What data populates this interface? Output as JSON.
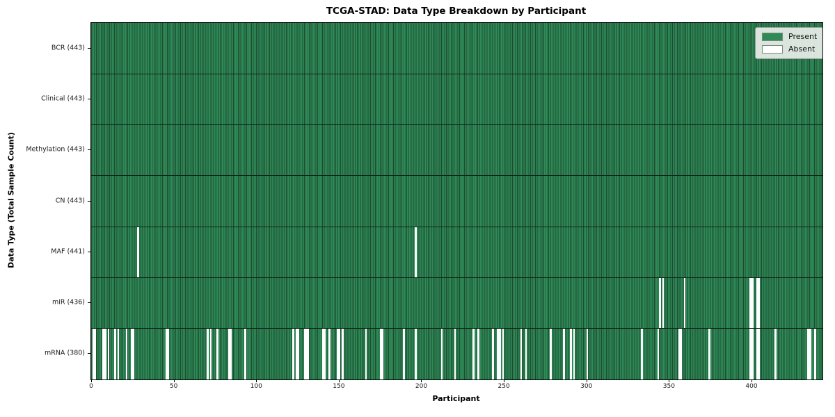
{
  "chart_data": {
    "type": "heatmap",
    "title": "TCGA-STAD: Data Type Breakdown by Participant",
    "xlabel": "Participant",
    "ylabel": "Data Type (Total Sample Count)",
    "n_participants": 443,
    "x_ticks": [
      0,
      50,
      100,
      150,
      200,
      250,
      300,
      350,
      400
    ],
    "grid": false,
    "legend_position": "upper right",
    "legend": [
      {
        "label": "Present",
        "color": "#2e8b57"
      },
      {
        "label": "Absent",
        "color": "#ffffff"
      }
    ],
    "colors": {
      "present": "#2e8b57",
      "present_edge": "#1d4a31",
      "absent": "#ffffff",
      "row_separator": "#0f2418",
      "spine": "#000000"
    },
    "rows": [
      {
        "name": "BCR",
        "label": "BCR (443)",
        "present_count": 443,
        "absent_participants": []
      },
      {
        "name": "Clinical",
        "label": "Clinical (443)",
        "present_count": 443,
        "absent_participants": []
      },
      {
        "name": "Methylation",
        "label": "Methylation (443)",
        "present_count": 443,
        "absent_participants": []
      },
      {
        "name": "CN",
        "label": "CN (443)",
        "present_count": 443,
        "absent_participants": []
      },
      {
        "name": "MAF",
        "label": "MAF (441)",
        "present_count": 441,
        "absent_participants": [
          28,
          196
        ]
      },
      {
        "name": "miR",
        "label": "miR (436)",
        "present_count": 436,
        "absent_participants": [
          344,
          346,
          359,
          399,
          400,
          403,
          404
        ]
      },
      {
        "name": "mRNA",
        "label": "mRNA (380)",
        "present_count": 380,
        "absent_participants": [
          1,
          2,
          7,
          8,
          10,
          14,
          16,
          21,
          24,
          25,
          45,
          46,
          70,
          72,
          76,
          83,
          84,
          93,
          122,
          124,
          125,
          129,
          130,
          131,
          140,
          141,
          144,
          149,
          150,
          152,
          166,
          175,
          176,
          189,
          196,
          212,
          220,
          231,
          234,
          243,
          246,
          247,
          249,
          260,
          263,
          278,
          286,
          290,
          292,
          300,
          333,
          343,
          356,
          357,
          374,
          399,
          400,
          403,
          404,
          414,
          434,
          435,
          438
        ]
      }
    ]
  }
}
